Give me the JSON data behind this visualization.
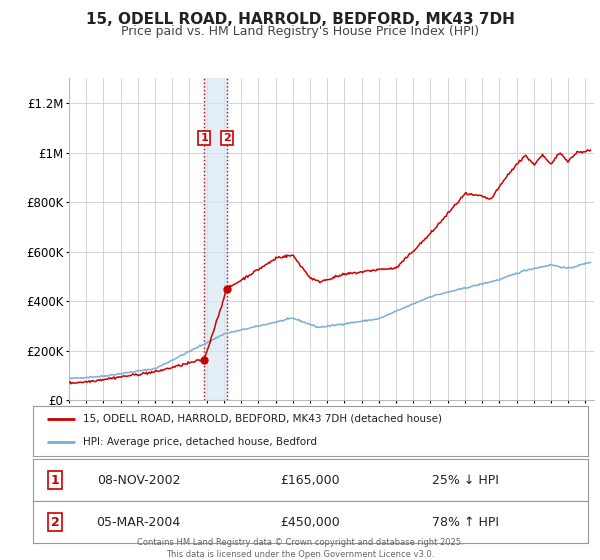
{
  "title": "15, ODELL ROAD, HARROLD, BEDFORD, MK43 7DH",
  "subtitle": "Price paid vs. HM Land Registry's House Price Index (HPI)",
  "title_fontsize": 11,
  "subtitle_fontsize": 9,
  "background_color": "#ffffff",
  "plot_bg_color": "#ffffff",
  "grid_color": "#cccccc",
  "red_color": "#cc0000",
  "blue_color": "#7ab0d4",
  "sale1_date": 2002.86,
  "sale1_price": 165000,
  "sale1_label": "1",
  "sale2_date": 2004.17,
  "sale2_price": 450000,
  "sale2_label": "2",
  "shade_x1": 2002.86,
  "shade_x2": 2004.17,
  "ylim_min": 0,
  "ylim_max": 1300000,
  "xlim_min": 1995,
  "xlim_max": 2025.5,
  "legend1_label": "15, ODELL ROAD, HARROLD, BEDFORD, MK43 7DH (detached house)",
  "legend2_label": "HPI: Average price, detached house, Bedford",
  "table_row1": [
    "1",
    "08-NOV-2002",
    "£165,000",
    "25% ↓ HPI"
  ],
  "table_row2": [
    "2",
    "05-MAR-2004",
    "£450,000",
    "78% ↑ HPI"
  ],
  "footer_text": "Contains HM Land Registry data © Crown copyright and database right 2025.\nThis data is licensed under the Open Government Licence v3.0.",
  "yticks": [
    0,
    200000,
    400000,
    600000,
    800000,
    1000000,
    1200000
  ],
  "ytick_labels": [
    "£0",
    "£200K",
    "£400K",
    "£600K",
    "£800K",
    "£1M",
    "£1.2M"
  ]
}
